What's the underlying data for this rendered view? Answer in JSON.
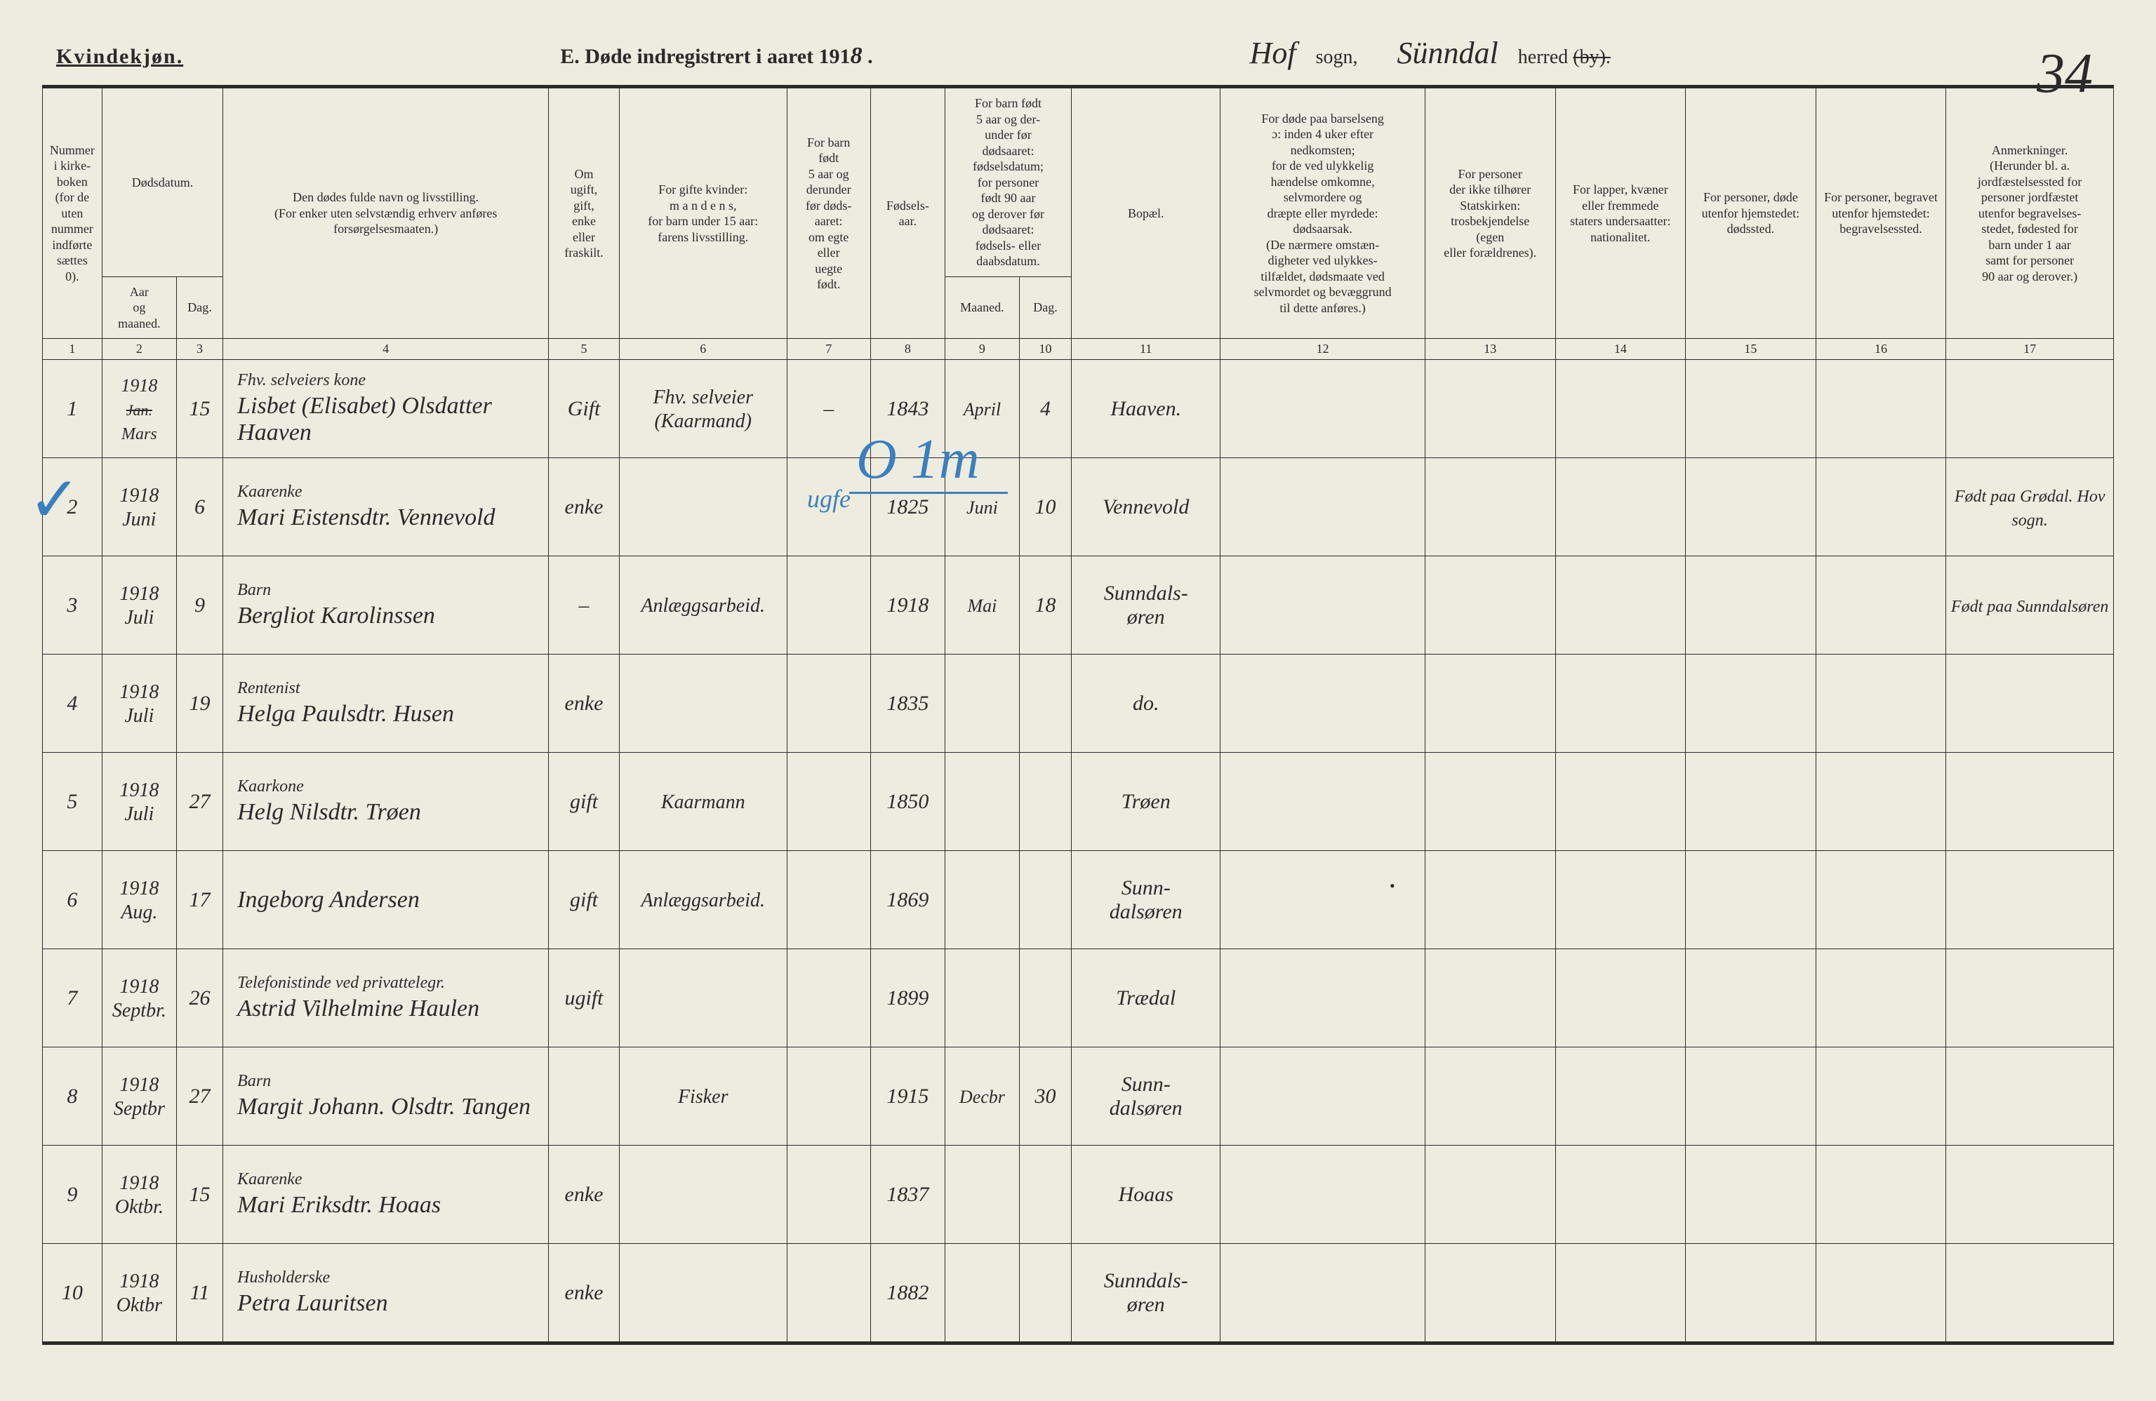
{
  "page": {
    "gender_heading": "Kvindekjøn.",
    "title_prefix": "E.  Døde indregistrert i aaret 191",
    "title_year_digit": "8",
    "title_suffix": " .",
    "sogn_value": "Hof",
    "sogn_label": "sogn,",
    "herred_value": "Sünndal",
    "herred_label": "herred",
    "herred_struck": "(by).",
    "page_number": "34",
    "blue_annotation": "O  1m",
    "blue_sub": "ugfe"
  },
  "columns": {
    "c1": "Nummer i kirke-\nboken\n(for de\nuten\nnummer\nindførte\nsættes\n0).",
    "c2_top": "Dødsdatum.",
    "c2a": "Aar\nog\nmaaned.",
    "c2b": "Dag.",
    "c4": "Den dødes fulde navn og livsstilling.\n(For enker uten selvstændig erhverv anføres\nforsørgelsesmaaten.)",
    "c5": "Om\nugift,\ngift,\nenke\neller\nfraskilt.",
    "c6": "For gifte kvinder:\nm a n d e n s,\nfor barn under 15 aar:\nfarens livsstilling.",
    "c7": "For barn\nfødt\n5 aar og\nderunder\nfør døds-\naaret:\nom egte\neller\nuegte\nfødt.",
    "c8": "Fødsels-\naar.",
    "c9_top": "For barn født\n5 aar og der-\nunder før\ndødsaaret:\nfødselsdatum;\nfor personer\nfødt 90 aar\nog derover før\ndødsaaret:\nfødsels- eller\ndaabsdatum.",
    "c9a": "Maaned.",
    "c9b": "Dag.",
    "c11": "Bopæl.",
    "c12": "For døde paa barselseng\nɔ: inden 4 uker efter\nnedkomsten;\nfor de ved ulykkelig\nhændelse omkomne,\nselvmordere og\ndræpte eller myrdede:\ndødsaarsak.\n(De nærmere omstæn-\ndigheter ved ulykkes-\ntilfældet, dødsmaate ved\nselvmordet og bevæggrund\ntil dette anføres.)",
    "c13": "For personer\nder ikke tilhører\nStatskirken:\ntrosbekjendelse\n(egen\neller forældrenes).",
    "c14": "For lapper, kvæner\neller fremmede\nstaters undersaatter:\nnationalitet.",
    "c15": "For personer, døde\nutenfor hjemstedet:\ndødssted.",
    "c16": "For personer, begravet\nutenfor hjemstedet:\nbegravelsessted.",
    "c17": "Anmerkninger.\n(Herunder bl. a.\njordfæstelsessted for\npersoner jordfæstet\nutenfor begravelses-\nstedet, fødested for\nbarn under 1 aar\nsamt for personer\n90 aar og derover.)"
  },
  "colnums": [
    "1",
    "2",
    "3",
    "4",
    "5",
    "6",
    "7",
    "8",
    "9",
    "10",
    "11",
    "12",
    "13",
    "14",
    "15",
    "16",
    "17"
  ],
  "rows": [
    {
      "n": "1",
      "ym": "1918\nMars",
      "ym_struck": "Jan.",
      "day": "15",
      "occ": "Fhv. selveiers kone",
      "name": "Lisbet (Elisabet) Olsdatter Haaven",
      "stat": "Gift",
      "c6": "Fhv. selveier\n(Kaarmand)",
      "c7": "–",
      "c8": "1843",
      "c9m": "April",
      "c9d": "4",
      "c11": "Haaven.",
      "c17": ""
    },
    {
      "n": "2",
      "ym": "1918\nJuni",
      "day": "6",
      "occ": "Kaarenke",
      "name": "Mari Eistensdtr. Vennevold",
      "stat": "enke",
      "c6": "",
      "c7": "",
      "c8": "1825",
      "c9m": "Juni",
      "c9d": "10",
      "c11": "Vennevold",
      "c17": "Født paa Grødal. Hov sogn."
    },
    {
      "n": "3",
      "ym": "1918\nJuli",
      "day": "9",
      "occ": "Barn",
      "name": "Bergliot Karolinssen",
      "stat": "–",
      "c6": "Anlæggsarbeid.",
      "c7": "",
      "c8": "1918",
      "c9m": "Mai",
      "c9d": "18",
      "c11": "Sunndals-\nøren",
      "c17": "Født paa Sunndalsøren"
    },
    {
      "n": "4",
      "ym": "1918\nJuli",
      "day": "19",
      "occ": "Rentenist",
      "name": "Helga Paulsdtr. Husen",
      "stat": "enke",
      "c6": "",
      "c7": "",
      "c8": "1835",
      "c9m": "",
      "c9d": "",
      "c11": "do.",
      "c17": ""
    },
    {
      "n": "5",
      "ym": "1918\nJuli",
      "day": "27",
      "occ": "Kaarkone",
      "name": "Helg Nilsdtr. Trøen",
      "stat": "gift",
      "c6": "Kaarmann",
      "c7": "",
      "c8": "1850",
      "c9m": "",
      "c9d": "",
      "c11": "Trøen",
      "c17": ""
    },
    {
      "n": "6",
      "ym": "1918\nAug.",
      "day": "17",
      "occ": "",
      "name": "Ingeborg Andersen",
      "stat": "gift",
      "c6": "Anlæggsarbeid.",
      "c7": "",
      "c8": "1869",
      "c9m": "",
      "c9d": "",
      "c11": "Sunn-\ndalsøren",
      "c17": ""
    },
    {
      "n": "7",
      "ym": "1918\nSeptbr.",
      "day": "26",
      "occ": "Telefonistinde ved privattelegr.",
      "name": "Astrid Vilhelmine Haulen",
      "stat": "ugift",
      "c6": "",
      "c7": "",
      "c8": "1899",
      "c9m": "",
      "c9d": "",
      "c11": "Trædal",
      "c17": ""
    },
    {
      "n": "8",
      "ym": "1918\nSeptbr",
      "day": "27",
      "occ": "Barn",
      "name": "Margit Johann. Olsdtr. Tangen",
      "stat": "",
      "c6": "Fisker",
      "c7": "",
      "c8": "1915",
      "c9m": "Decbr",
      "c9d": "30",
      "c11": "Sunn-\ndalsøren",
      "c17": ""
    },
    {
      "n": "9",
      "ym": "1918\nOktbr.",
      "day": "15",
      "occ": "Kaarenke",
      "name": "Mari Eriksdtr. Hoaas",
      "stat": "enke",
      "c6": "",
      "c7": "",
      "c8": "1837",
      "c9m": "",
      "c9d": "",
      "c11": "Hoaas",
      "c17": ""
    },
    {
      "n": "10",
      "ym": "1918\nOktbr",
      "day": "11",
      "occ": "Husholderske",
      "name": "Petra Lauritsen",
      "stat": "enke",
      "c6": "",
      "c7": "",
      "c8": "1882",
      "c9m": "",
      "c9d": "",
      "c11": "Sunndals-\nøren",
      "c17": ""
    }
  ],
  "style": {
    "bg": "#eeecdf",
    "ink": "#2a2a2a",
    "blue": "#3a7fbf",
    "header_fontsize": 30,
    "body_fontsize": 30,
    "script_fontsize": 44,
    "colwidths_pct": [
      3.2,
      4.0,
      2.5,
      17.5,
      3.8,
      9.0,
      4.5,
      4.0,
      4.0,
      2.8,
      8.0,
      11.0,
      7.0,
      7.0,
      7.0,
      7.0,
      9.0
    ]
  }
}
